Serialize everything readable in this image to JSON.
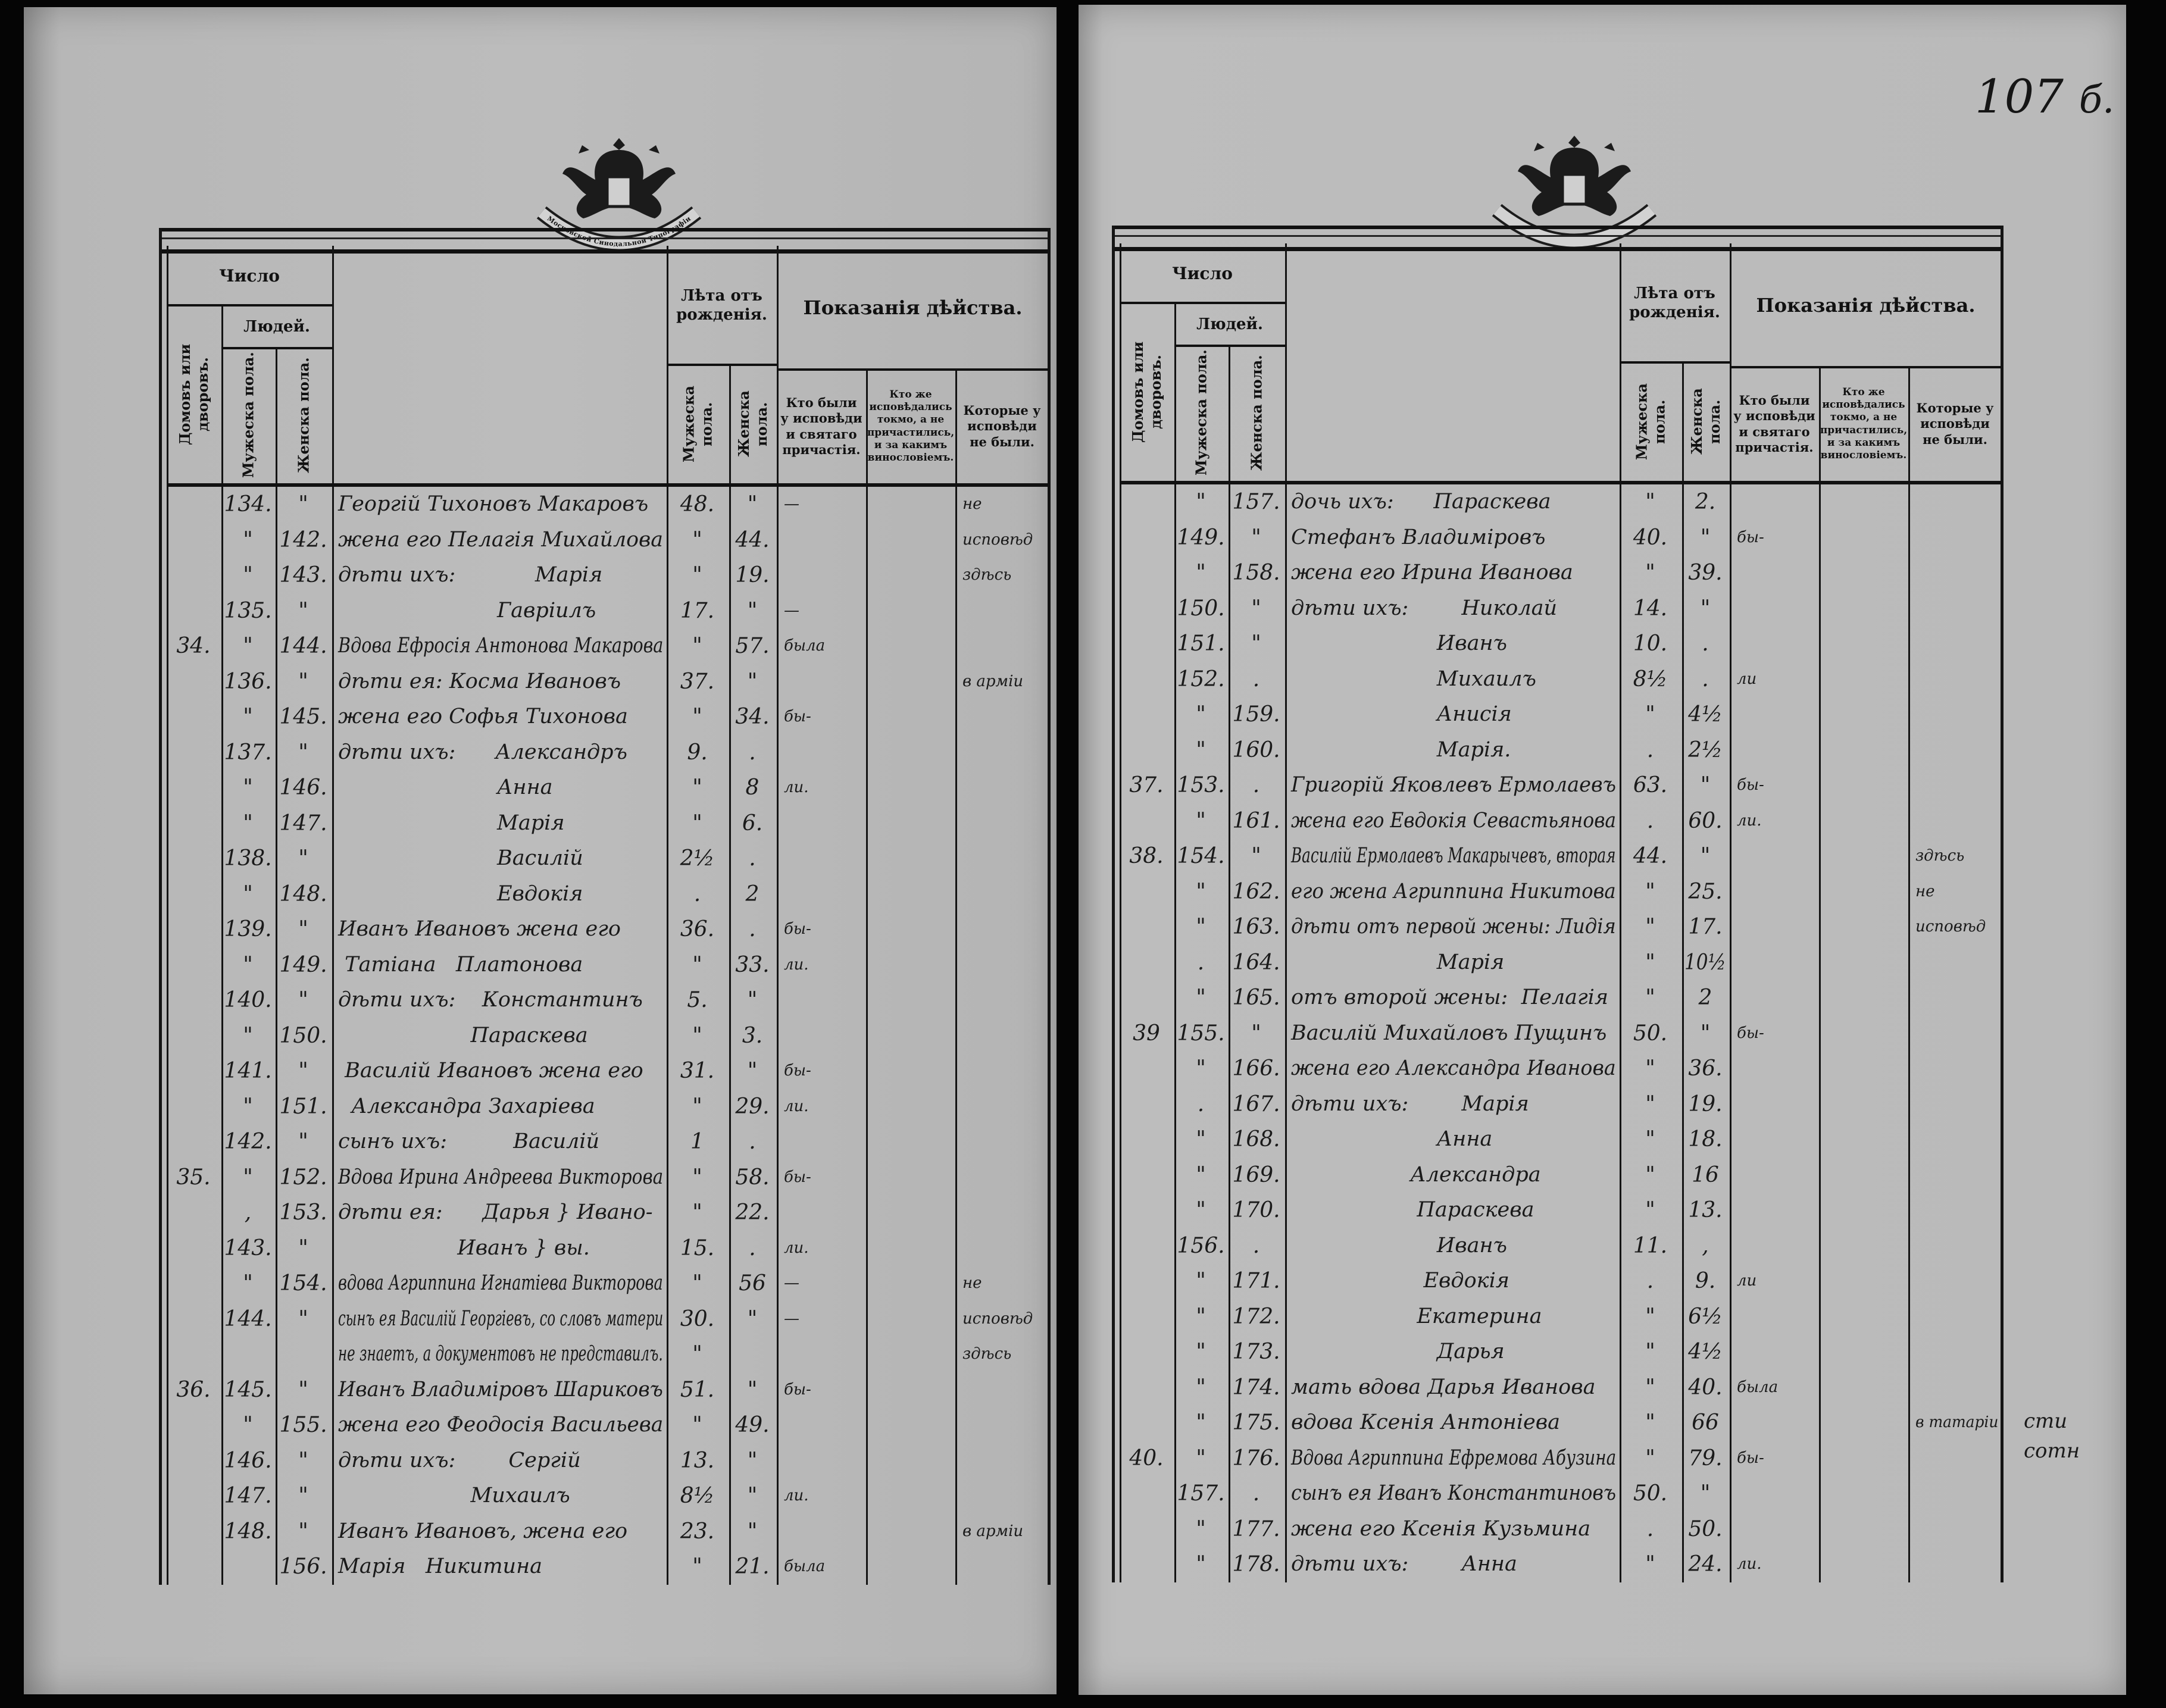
{
  "page_number": {
    "main": "107",
    "suffix": "б."
  },
  "crest_ribbon_text": "Московской Синодальной Типографіи",
  "header": {
    "chislo": "Число",
    "lyudey": "Людей.",
    "domov": "Домовъ или дворовъ.",
    "muzh": "Мужеска пола.",
    "zhen": "Женска пола.",
    "leta": "Лѣта отъ рожденія.",
    "pokazaniya": "Показанія дѣйства.",
    "kto_byli": "Кто были у исповѣди и святаго причастія.",
    "kto_zhe": "Кто же исповѣдались токмо, а не причастились, и за какимъ винословіемъ.",
    "kotorye": "Которые у исповѣди не были."
  },
  "left_page": {
    "rows": [
      [
        "",
        "134.",
        "\"",
        "Георгій Тихоновъ Макаровъ",
        "48.",
        "\"",
        "—",
        "",
        "не"
      ],
      [
        "",
        "\"",
        "142.",
        "жена его Пелагія Михайлова",
        "\"",
        "44.",
        "",
        "",
        "исповѣд"
      ],
      [
        "",
        "\"",
        "143.",
        "дѣти ихъ:            Марія",
        "\"",
        "19.",
        "",
        "",
        "здѣсь"
      ],
      [
        "",
        "135.",
        "\"",
        "                        Гавріилъ",
        "17.",
        "\"",
        "—",
        "",
        ""
      ],
      [
        "34.",
        "\"",
        "144.",
        "Вдова Ефросія Антонова Макарова",
        "\"",
        "57.",
        "была",
        "",
        ""
      ],
      [
        "",
        "136.",
        "\"",
        "дѣти ея: Косма Ивановъ",
        "37.",
        "\"",
        "",
        "",
        "в арміи"
      ],
      [
        "",
        "\"",
        "145.",
        "жена его Софья Тихонова",
        "\"",
        "34.",
        "бы-",
        "",
        ""
      ],
      [
        "",
        "137.",
        "\"",
        "дѣти ихъ:      Александръ",
        "9.",
        ".",
        "",
        "",
        ""
      ],
      [
        "",
        "\"",
        "146.",
        "                        Анна",
        "\"",
        "8",
        "ли.",
        "",
        ""
      ],
      [
        "",
        "\"",
        "147.",
        "                        Марія",
        "\"",
        "6.",
        "",
        "",
        ""
      ],
      [
        "",
        "138.",
        "\"",
        "                        Василій",
        "2½",
        ".",
        "",
        "",
        ""
      ],
      [
        "",
        "\"",
        "148.",
        "                        Евдокія",
        ".",
        "2",
        "",
        "",
        ""
      ],
      [
        "",
        "139.",
        "\"",
        "Иванъ Ивановъ жена его",
        "36.",
        ".",
        "бы-",
        "",
        ""
      ],
      [
        "",
        "\"",
        "149.",
        " Татіана   Платонова",
        "\"",
        "33.",
        "ли.",
        "",
        ""
      ],
      [
        "",
        "140.",
        "\"",
        "дѣти ихъ:    Константинъ",
        "5.",
        "\"",
        "",
        "",
        ""
      ],
      [
        "",
        "\"",
        "150.",
        "                    Параскева",
        "\"",
        "3.",
        "",
        "",
        ""
      ],
      [
        "",
        "141.",
        "\"",
        " Василій Ивановъ жена его",
        "31.",
        "\"",
        "бы-",
        "",
        ""
      ],
      [
        "",
        "\"",
        "151.",
        "  Александра Захаріева",
        "\"",
        "29.",
        "ли.",
        "",
        ""
      ],
      [
        "",
        "142.",
        "\"",
        "сынъ ихъ:          Василій",
        "1",
        ".",
        "",
        "",
        ""
      ],
      [
        "35.",
        "\"",
        "152.",
        "Вдова Ирина Андреева Викторова",
        "\"",
        "58.",
        "бы-",
        "",
        ""
      ],
      [
        "",
        ",",
        "153.",
        "дѣти ея:      Дарья } Ивано-",
        "\"",
        "22.",
        "",
        "",
        ""
      ],
      [
        "",
        "143.",
        "\"",
        "                  Иванъ } вы.",
        "15.",
        ".",
        "ли.",
        "",
        ""
      ],
      [
        "",
        "\"",
        "154.",
        "вдова Агриппина Игнатіева Викторова",
        "\"",
        "56",
        "—",
        "",
        "не"
      ],
      [
        "",
        "144.",
        "\"",
        "сынъ ея Василій Георгіевъ, со словъ матери",
        "30.",
        "\"",
        "—",
        "",
        "исповѣд"
      ],
      [
        "",
        "",
        "",
        "не знаетъ, а документовъ не представилъ.",
        "\"",
        "",
        "",
        "",
        "здѣсь"
      ],
      [
        "36.",
        "145.",
        "\"",
        "Иванъ Владиміровъ Шариковъ",
        "51.",
        "\"",
        "бы-",
        "",
        ""
      ],
      [
        "",
        "\"",
        "155.",
        "жена его Феодосія Васильева",
        "\"",
        "49.",
        "",
        "",
        ""
      ],
      [
        "",
        "146.",
        "\"",
        "дѣти ихъ:        Сергій",
        "13.",
        "\"",
        "",
        "",
        ""
      ],
      [
        "",
        "147.",
        "\"",
        "                    Михаилъ",
        "8½",
        "\"",
        "ли.",
        "",
        ""
      ],
      [
        "",
        "148.",
        "\"",
        "Иванъ Ивановъ, жена его",
        "23.",
        "\"",
        "",
        "",
        "в арміи"
      ],
      [
        "",
        "",
        "156.",
        "Марія   Никитина",
        "\"",
        "21.",
        "была",
        "",
        ""
      ]
    ]
  },
  "right_page": {
    "rows": [
      [
        "",
        "\"",
        "157.",
        "дочь ихъ:      Параскева",
        "\"",
        "2.",
        "",
        "",
        ""
      ],
      [
        "",
        "149.",
        "\"",
        "Стефанъ Владиміровъ",
        "40.",
        "\"",
        "бы-",
        "",
        ""
      ],
      [
        "",
        "\"",
        "158.",
        "жена его Ирина Иванова",
        "\"",
        "39.",
        "",
        "",
        ""
      ],
      [
        "",
        "150.",
        "\"",
        "дѣти ихъ:        Николай",
        "14.",
        "\"",
        "",
        "",
        ""
      ],
      [
        "",
        "151.",
        "\"",
        "                      Иванъ",
        "10.",
        ".",
        "",
        "",
        ""
      ],
      [
        "",
        "152.",
        ".",
        "                      Михаилъ",
        "8½",
        ".",
        "ли",
        "",
        ""
      ],
      [
        "",
        "\"",
        "159.",
        "                      Анисія",
        "\"",
        "4½",
        "",
        "",
        ""
      ],
      [
        "",
        "\"",
        "160.",
        "                      Марія.",
        ".",
        "2½",
        "",
        "",
        ""
      ],
      [
        "37.",
        "153.",
        ".",
        "Григорій Яковлевъ Ермолаевъ",
        "63.",
        "\"",
        "бы-",
        "",
        ""
      ],
      [
        "",
        "\"",
        "161.",
        "жена его Евдокія Севастьянова",
        ".",
        "60.",
        "ли.",
        "",
        ""
      ],
      [
        "38.",
        "154.",
        "\"",
        "Василій Ермолаевъ Макарычевъ, вторая",
        "44.",
        "\"",
        "",
        "",
        "здѣсь"
      ],
      [
        "",
        "\"",
        "162.",
        "его жена Агриппина Никитова",
        "\"",
        "25.",
        "",
        "",
        "не"
      ],
      [
        "",
        "\"",
        "163.",
        "дѣти отъ первой жены: Лидія",
        "\"",
        "17.",
        "",
        "",
        "исповѣд"
      ],
      [
        "",
        ".",
        "164.",
        "                      Марія",
        "\"",
        "10½",
        "",
        "",
        ""
      ],
      [
        "",
        "\"",
        "165.",
        "отъ второй жены:  Пелагія",
        "\"",
        "2",
        "",
        "",
        ""
      ],
      [
        "39",
        "155.",
        "\"",
        "Василій Михайловъ Пущинъ",
        "50.",
        "\"",
        "бы-",
        "",
        ""
      ],
      [
        "",
        "\"",
        "166.",
        "жена его Александра Иванова",
        "\"",
        "36.",
        "",
        "",
        ""
      ],
      [
        "",
        ".",
        "167.",
        "дѣти ихъ:        Марія",
        "\"",
        "19.",
        "",
        "",
        ""
      ],
      [
        "",
        "\"",
        "168.",
        "                      Анна",
        "\"",
        "18.",
        "",
        "",
        ""
      ],
      [
        "",
        "\"",
        "169.",
        "                  Александра",
        "\"",
        "16",
        "",
        "",
        ""
      ],
      [
        "",
        "\"",
        "170.",
        "                   Параскева",
        "\"",
        "13.",
        "",
        "",
        ""
      ],
      [
        "",
        "156.",
        ".",
        "                      Иванъ",
        "11.",
        ",",
        "",
        "",
        ""
      ],
      [
        "",
        "\"",
        "171.",
        "                    Евдокія",
        ".",
        "9.",
        "ли",
        "",
        ""
      ],
      [
        "",
        "\"",
        "172.",
        "                   Екатерина",
        "\"",
        "6½",
        "",
        "",
        ""
      ],
      [
        "",
        "\"",
        "173.",
        "                      Дарья",
        "\"",
        "4½",
        "",
        "",
        ""
      ],
      [
        "",
        "\"",
        "174.",
        "мать вдова Дарья Иванова",
        "\"",
        "40.",
        "была",
        "",
        ""
      ],
      [
        "",
        "\"",
        "175.",
        "вдова Ксенія Антоніева",
        "\"",
        "66",
        "",
        "",
        "в татаріи"
      ],
      [
        "40.",
        "\"",
        "176.",
        "Вдова Агриппина Ефремова Абузина",
        "\"",
        "79.",
        "бы-",
        "",
        ""
      ],
      [
        "",
        "157.",
        ".",
        "сынъ ея Иванъ Константиновъ",
        "50.",
        "\"",
        "",
        "",
        ""
      ],
      [
        "",
        "\"",
        "177.",
        "жена его Ксенія Кузьмина",
        ".",
        "50.",
        "",
        "",
        ""
      ],
      [
        "",
        "\"",
        "178.",
        "дѣти ихъ:        Анна",
        "\"",
        "24.",
        "ли.",
        "",
        ""
      ]
    ],
    "margin_note": [
      "сти",
      "сотн"
    ]
  }
}
